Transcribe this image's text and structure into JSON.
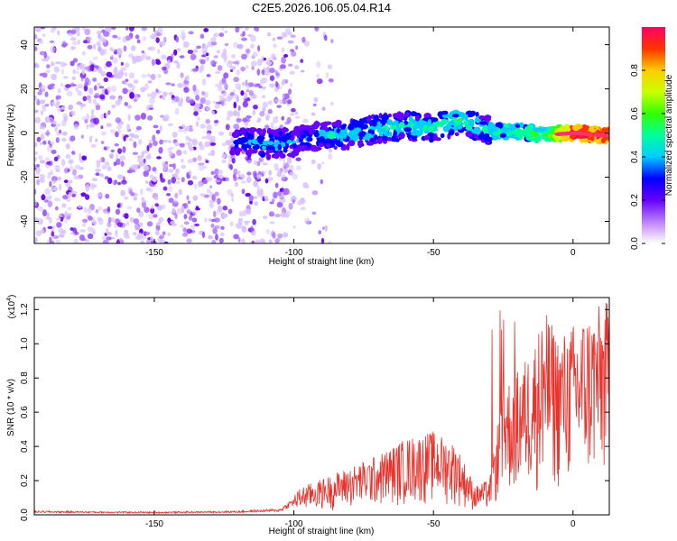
{
  "title": "C2E5.2026.106.05.04.R14",
  "chart_data": [
    {
      "type": "heatmap",
      "xlabel": "Height of straight line (km)",
      "ylabel": "Frequency (Hz)",
      "xlim": [
        -193,
        13
      ],
      "ylim": [
        -50,
        48
      ],
      "xticks": [
        -150,
        -100,
        -50,
        0
      ],
      "yticks": [
        -40,
        -20,
        0,
        20,
        40
      ],
      "colorbar": {
        "label": "Normalized spectral amplitude",
        "range": [
          0.0,
          1.0
        ],
        "ticks": [
          0.0,
          0.2,
          0.4,
          0.6,
          0.8
        ]
      },
      "ridge": [
        {
          "x": -120,
          "y": -3,
          "amp": 0.3
        },
        {
          "x": -110,
          "y": -5,
          "amp": 0.35
        },
        {
          "x": -100,
          "y": -4,
          "amp": 0.3
        },
        {
          "x": -90,
          "y": -1,
          "amp": 0.35
        },
        {
          "x": -80,
          "y": -1,
          "amp": 0.38
        },
        {
          "x": -70,
          "y": 2,
          "amp": 0.4
        },
        {
          "x": -60,
          "y": 3,
          "amp": 0.4
        },
        {
          "x": -50,
          "y": 2,
          "amp": 0.42
        },
        {
          "x": -40,
          "y": 6,
          "amp": 0.45
        },
        {
          "x": -30,
          "y": 1,
          "amp": 0.4
        },
        {
          "x": -20,
          "y": 1,
          "amp": 0.45
        },
        {
          "x": -10,
          "y": -1,
          "amp": 0.5
        },
        {
          "x": 0,
          "y": 0,
          "amp": 0.95
        },
        {
          "x": 10,
          "y": -1,
          "amp": 0.9
        }
      ]
    },
    {
      "type": "line",
      "xlabel": "Height of straight line (km)",
      "ylabel": "SNR (10 * v/v)",
      "yscale_label": "(x10",
      "yscale_exp": "4",
      "yscale_close": ")",
      "xlim": [
        -193,
        13
      ],
      "ylim": [
        0,
        1.27
      ],
      "xticks": [
        -150,
        -100,
        -50,
        0
      ],
      "yticks": [
        0.0,
        0.2,
        0.4,
        0.6,
        0.8,
        1.0,
        1.2
      ],
      "color": "#e8322c",
      "envelope": [
        {
          "x": -193,
          "y": 0.02
        },
        {
          "x": -150,
          "y": 0.015
        },
        {
          "x": -120,
          "y": 0.02
        },
        {
          "x": -105,
          "y": 0.03
        },
        {
          "x": -97,
          "y": 0.12
        },
        {
          "x": -90,
          "y": 0.15
        },
        {
          "x": -80,
          "y": 0.2
        },
        {
          "x": -70,
          "y": 0.25
        },
        {
          "x": -60,
          "y": 0.32
        },
        {
          "x": -50,
          "y": 0.35
        },
        {
          "x": -42,
          "y": 0.3
        },
        {
          "x": -35,
          "y": 0.12
        },
        {
          "x": -30,
          "y": 0.15
        },
        {
          "x": -25,
          "y": 0.55
        },
        {
          "x": -20,
          "y": 0.6
        },
        {
          "x": -15,
          "y": 0.7
        },
        {
          "x": -10,
          "y": 0.85
        },
        {
          "x": -5,
          "y": 0.75
        },
        {
          "x": 0,
          "y": 0.8
        },
        {
          "x": 5,
          "y": 0.85
        },
        {
          "x": 13,
          "y": 0.9
        }
      ]
    }
  ]
}
